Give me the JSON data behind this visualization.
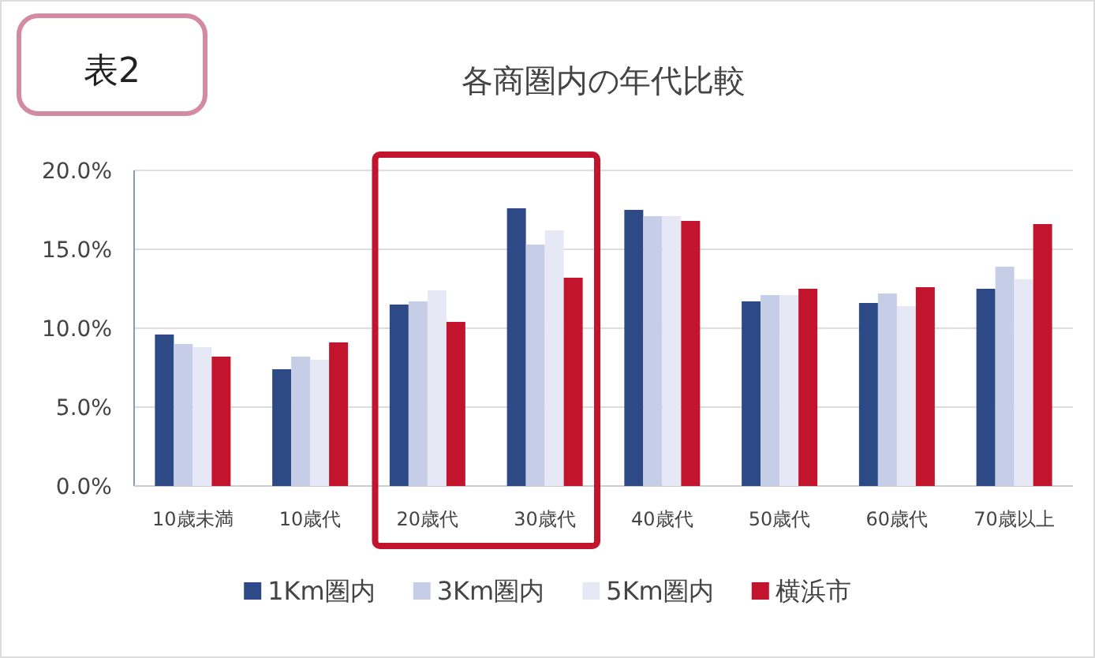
{
  "chart_data": {
    "type": "bar",
    "title": "各商圏内の年代比較",
    "annotations": [
      "表2"
    ],
    "categories": [
      "10歳未満",
      "10歳代",
      "20歳代",
      "30歳代",
      "40歳代",
      "50歳代",
      "60歳代",
      "70歳以上"
    ],
    "series": [
      {
        "name": "1Km圏内",
        "color": "#2e4a86",
        "values": [
          9.6,
          7.4,
          11.5,
          17.6,
          17.5,
          11.7,
          11.6,
          12.5
        ]
      },
      {
        "name": "3Km圏内",
        "color": "#c5cee6",
        "values": [
          9.0,
          8.2,
          11.7,
          15.3,
          17.1,
          12.1,
          12.2,
          13.9
        ]
      },
      {
        "name": "5Km圏内",
        "color": "#e6e8f6",
        "values": [
          8.8,
          8.0,
          12.4,
          16.2,
          17.1,
          12.1,
          11.4,
          13.1
        ]
      },
      {
        "name": "横浜市",
        "color": "#c3142d",
        "values": [
          8.2,
          9.1,
          10.4,
          13.2,
          16.8,
          12.5,
          12.6,
          16.6
        ]
      }
    ],
    "ylim": [
      0,
      20
    ],
    "yticks": [
      {
        "value": 0,
        "label": "0.0%"
      },
      {
        "value": 5,
        "label": "5.0%"
      },
      {
        "value": 10,
        "label": "10.0%"
      },
      {
        "value": 15,
        "label": "15.0%"
      },
      {
        "value": 20,
        "label": "20.0%"
      }
    ],
    "grid": "y",
    "legend": "bottom"
  }
}
